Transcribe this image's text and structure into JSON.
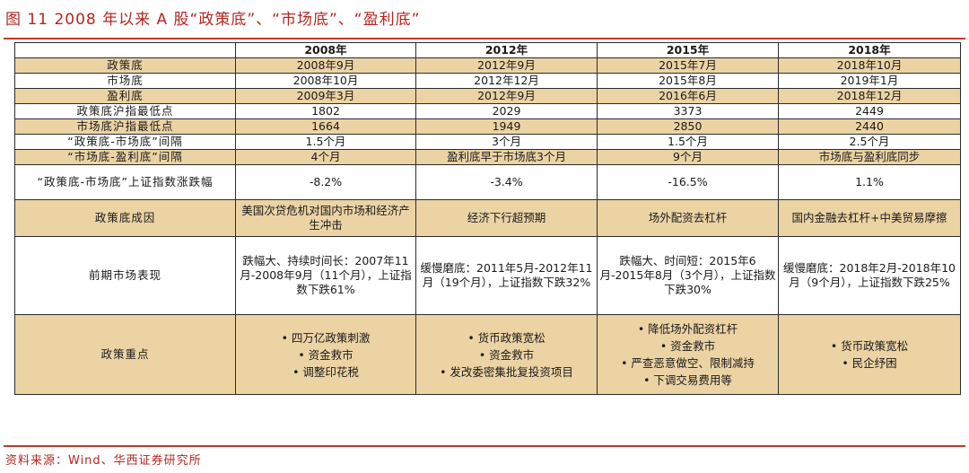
{
  "title": "图 11  2008 年以来 A 股“政策底”、“市场底”、“盈利底”",
  "source": "资料来源：Wind、华西证券研究所",
  "colors": {
    "accent_red": "#c0392b",
    "tan": "#ecd3a4"
  },
  "table": {
    "columns": [
      "",
      "2008年",
      "2012年",
      "2015年",
      "2018年"
    ],
    "rows": [
      {
        "label": "政策底",
        "cells": [
          "2008年9月",
          "2012年9月",
          "2015年7月",
          "2018年10月"
        ]
      },
      {
        "label": "市场底",
        "cells": [
          "2008年10月",
          "2012年12月",
          "2015年8月",
          "2019年1月"
        ]
      },
      {
        "label": "盈利底",
        "cells": [
          "2009年3月",
          "2012年9月",
          "2016年6月",
          "2018年12月"
        ]
      },
      {
        "label": "政策底沪指最低点",
        "cells": [
          "1802",
          "2029",
          "3373",
          "2449"
        ]
      },
      {
        "label": "市场底沪指最低点",
        "cells": [
          "1664",
          "1949",
          "2850",
          "2440"
        ]
      },
      {
        "label": "“政策底-市场底”间隔",
        "cells": [
          "1.5个月",
          "3个月",
          "1.5个月",
          "2.5个月"
        ]
      },
      {
        "label": "“市场底-盈利底”间隔",
        "cells": [
          "4个月",
          "盈利底早于市场底3个月",
          "9个月",
          "市场底与盈利底同步"
        ]
      },
      {
        "label": "“政策底-市场底”上证指数涨跌幅",
        "cells": [
          "-8.2%",
          "-3.4%",
          "-16.5%",
          "1.1%"
        ]
      },
      {
        "label": "政策底成因",
        "cells": [
          "美国次贷危机对国内市场和经济产生冲击",
          "经济下行超预期",
          "场外配资去杠杆",
          "国内金融去杠杆+中美贸易摩擦"
        ]
      },
      {
        "label": "前期市场表现",
        "cells": [
          "跌幅大、持续时间长：2007年11月-2008年9月（11个月），上证指数下跌61%",
          "缓慢磨底：2011年5月-2012年11月（19个月），上证指数下跌32%",
          "跌幅大、时间短：2015年6月-2015年8月（3个月），上证指数下跌30%",
          "缓慢磨底：2018年2月-2018年10月（9个月），上证指数下跌25%"
        ]
      },
      {
        "label": "政策重点",
        "cells": [
          [
            "• 四万亿政策刺激",
            "• 资金救市",
            "• 调整印花税"
          ],
          [
            "• 货币政策宽松",
            "• 资金救市",
            "• 发改委密集批复投资项目"
          ],
          [
            "• 降低场外配资杠杆",
            "• 资金救市",
            "• 严查恶意做空、限制减持",
            "• 下调交易费用等"
          ],
          [
            "• 货币政策宽松",
            "• 民企纾困"
          ]
        ]
      }
    ]
  }
}
